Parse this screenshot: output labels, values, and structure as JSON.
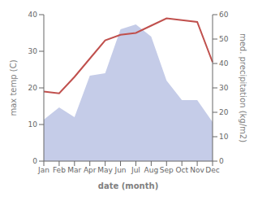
{
  "chart_data": {
    "type": "line",
    "xlabel": "date (month)",
    "ylabel": "max temp (C)",
    "y2label": "med. precipitation (kg/m2)",
    "categories": [
      "Jan",
      "Feb",
      "Mar",
      "Apr",
      "May",
      "Jun",
      "Jul",
      "Aug",
      "Sep",
      "Oct",
      "Nov",
      "Dec"
    ],
    "series": [
      {
        "type": "area",
        "axis": "y2",
        "color": "#c5cce8",
        "values": [
          17,
          22,
          18,
          35,
          36,
          54,
          56,
          51,
          33,
          25,
          25,
          16
        ]
      },
      {
        "type": "line",
        "color": "#c0504d",
        "values": [
          19,
          18.5,
          23,
          28,
          33,
          34.5,
          35,
          37,
          39,
          38.5,
          38,
          27
        ]
      }
    ],
    "ylim": [
      0,
      40
    ],
    "yticks": [
      0,
      10,
      20,
      30,
      40
    ],
    "y2lim": [
      0,
      60
    ],
    "y2ticks": [
      0,
      10,
      20,
      30,
      40,
      50,
      60
    ],
    "grid": false
  }
}
